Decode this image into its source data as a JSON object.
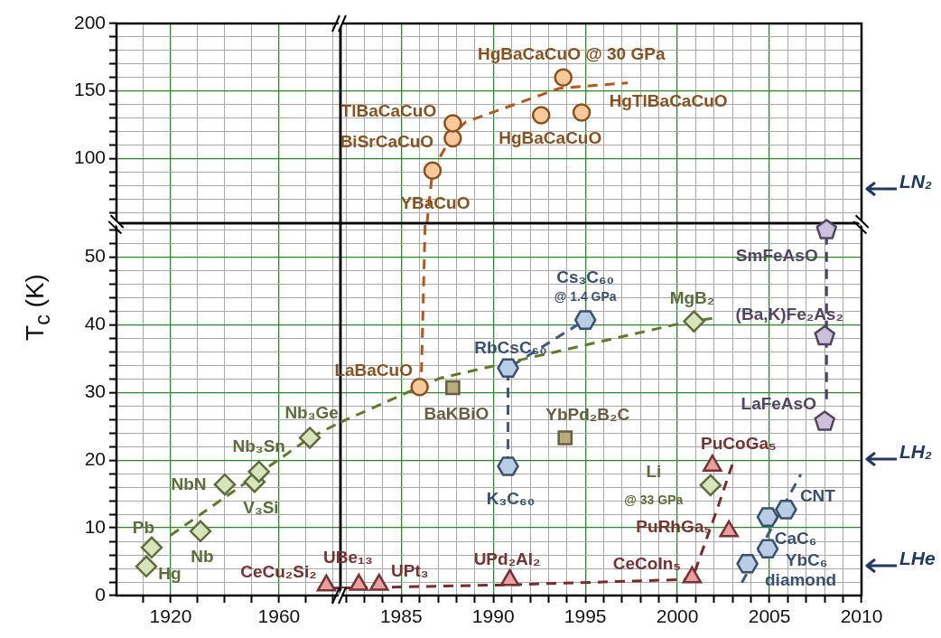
{
  "chart_data": [
    {
      "type": "scatter",
      "xlim": [
        1900,
        1982.7
      ],
      "ylim": [
        52,
        200
      ],
      "tick_labels": "y",
      "grid": true,
      "xticks": [
        {
          "value": 1910,
          "label": null
        },
        1920,
        {
          "value": 1930,
          "label": null
        },
        {
          "value": 1940,
          "label": null
        },
        {
          "value": 1950,
          "label": null
        },
        1960,
        {
          "value": 1970,
          "label": null
        },
        {
          "value": 1980,
          "label": null
        }
      ],
      "yticks": [
        {
          "value": 60,
          "label": null
        },
        {
          "value": 70,
          "label": null
        },
        {
          "value": 80,
          "label": null
        },
        {
          "value": 90,
          "label": null
        },
        100,
        {
          "value": 110,
          "label": null
        },
        {
          "value": 120,
          "label": null
        },
        {
          "value": 130,
          "label": null
        },
        {
          "value": 140,
          "label": null
        },
        150,
        {
          "value": 160,
          "label": null
        },
        {
          "value": 170,
          "label": null
        },
        {
          "value": 180,
          "label": null
        },
        {
          "value": 190,
          "label": null
        },
        200
      ]
    },
    {
      "type": "scatter",
      "xlim": [
        1981.7,
        2010
      ],
      "ylim": [
        52,
        200
      ],
      "tick_labels": false,
      "grid": true,
      "xticks": [
        {
          "value": 1982,
          "label": null
        },
        {
          "value": 1983,
          "label": null
        },
        {
          "value": 1984,
          "label": null
        },
        1985,
        {
          "value": 1986,
          "label": null
        },
        {
          "value": 1987,
          "label": null
        },
        {
          "value": 1988,
          "label": null
        },
        {
          "value": 1989,
          "label": null
        },
        1990,
        {
          "value": 1991,
          "label": null
        },
        {
          "value": 1992,
          "label": null
        },
        {
          "value": 1993,
          "label": null
        },
        {
          "value": 1994,
          "label": null
        },
        1995,
        {
          "value": 1996,
          "label": null
        },
        {
          "value": 1997,
          "label": null
        },
        {
          "value": 1998,
          "label": null
        },
        {
          "value": 1999,
          "label": null
        },
        2000,
        {
          "value": 2001,
          "label": null
        },
        {
          "value": 2002,
          "label": null
        },
        {
          "value": 2003,
          "label": null
        },
        {
          "value": 2004,
          "label": null
        },
        2005,
        {
          "value": 2006,
          "label": null
        },
        {
          "value": 2007,
          "label": null
        },
        {
          "value": 2008,
          "label": null
        },
        {
          "value": 2009,
          "label": null
        },
        2010
      ],
      "yticks": [
        {
          "value": 60,
          "label": null
        },
        {
          "value": 70,
          "label": null
        },
        {
          "value": 80,
          "label": null
        },
        {
          "value": 90,
          "label": null
        },
        100,
        {
          "value": 110,
          "label": null
        },
        {
          "value": 120,
          "label": null
        },
        {
          "value": 130,
          "label": null
        },
        {
          "value": 140,
          "label": null
        },
        150,
        {
          "value": 160,
          "label": null
        },
        {
          "value": 170,
          "label": null
        },
        {
          "value": 180,
          "label": null
        },
        {
          "value": 190,
          "label": null
        },
        200
      ],
      "series": [
        {
          "type": "line",
          "line_style": "dashed",
          "marker": "none",
          "color": "#b5571d",
          "x": [
            1986.4,
            1986.7,
            1987.8,
            1988.5,
            1993.6,
            1997.3
          ],
          "values": [
            52,
            91,
            118,
            127,
            152,
            156
          ]
        },
        {
          "type": "scatter",
          "marker": "circle",
          "color": "#f9c89b",
          "x": [
            1986.7,
            1987.8,
            1987.8,
            1992.6,
            1994.8,
            1993.8
          ],
          "values": [
            91,
            115,
            126,
            132,
            134,
            160
          ]
        }
      ],
      "annotations": [
        {
          "text": "YBaCuO",
          "x": 1986.7,
          "y": 91
        },
        {
          "text": "BiSrCaCuO",
          "x": 1987.8,
          "y": 115
        },
        {
          "text": "TlBaCaCuO",
          "x": 1987.8,
          "y": 126
        },
        {
          "text": "HgBaCaCuO",
          "x": 1992.6,
          "y": 132
        },
        {
          "text": "HgTlBaCaCuO",
          "x": 1994.8,
          "y": 134
        },
        {
          "text": "HgBaCaCuO @ 30 GPa",
          "x": 1993.8,
          "y": 160
        },
        "LN₂"
      ]
    },
    {
      "type": "scatter",
      "xlim": [
        1900,
        1982.7
      ],
      "ylim": [
        0,
        55
      ],
      "grid": true,
      "ylabel": "T$_{c}$ (K)",
      "xticks": [
        {
          "value": 1910,
          "label": null
        },
        1920,
        {
          "value": 1930,
          "label": null
        },
        {
          "value": 1940,
          "label": null
        },
        {
          "value": 1950,
          "label": null
        },
        1960,
        {
          "value": 1970,
          "label": null
        },
        {
          "value": 1980,
          "label": null
        }
      ],
      "yticks": [
        0,
        {
          "value": 2,
          "label": null
        },
        {
          "value": 4,
          "label": null
        },
        {
          "value": 6,
          "label": null
        },
        {
          "value": 8,
          "label": null
        },
        10,
        {
          "value": 12,
          "label": null
        },
        {
          "value": 14,
          "label": null
        },
        {
          "value": 16,
          "label": null
        },
        {
          "value": 18,
          "label": null
        },
        20,
        {
          "value": 22,
          "label": null
        },
        {
          "value": 24,
          "label": null
        },
        {
          "value": 26,
          "label": null
        },
        {
          "value": 28,
          "label": null
        },
        30,
        {
          "value": 32,
          "label": null
        },
        {
          "value": 34,
          "label": null
        },
        {
          "value": 36,
          "label": null
        },
        {
          "value": 38,
          "label": null
        },
        40,
        {
          "value": 42,
          "label": null
        },
        {
          "value": 44,
          "label": null
        },
        {
          "value": 46,
          "label": null
        },
        {
          "value": 48,
          "label": null
        },
        50,
        {
          "value": 52,
          "label": null
        },
        {
          "value": 54,
          "label": null
        }
      ],
      "series": [
        {
          "type": "line",
          "line_style": "dashed",
          "marker": "none",
          "color": "#5f7a2a",
          "x": [
            1920,
            1971.4,
            1982.7
          ],
          "values": [
            8.9,
            23.3,
            25.6
          ]
        },
        {
          "type": "line",
          "line_style": "dashed",
          "marker": "none",
          "color": "#7b2a2a",
          "x": [
            1979,
            1982.7
          ],
          "values": [
            1.1,
            1.1
          ]
        },
        {
          "type": "scatter",
          "marker": "diamond",
          "color": "#d7e4bc",
          "x": [
            1911,
            1913,
            1931,
            1940,
            1951,
            1952.6,
            1971.4
          ],
          "values": [
            4.3,
            7.1,
            9.5,
            16.4,
            16.8,
            18.3,
            23.3
          ]
        },
        {
          "type": "scatter",
          "marker": "triangle",
          "color": "#e6a0a0",
          "x": [
            1977.5
          ],
          "values": [
            1.5
          ]
        }
      ],
      "annotations": [
        {
          "text": "Hg",
          "x": 1911,
          "y": 4.3
        },
        {
          "text": "Pb",
          "x": 1913,
          "y": 7.1
        },
        {
          "text": "Nb",
          "x": 1931,
          "y": 9.5
        },
        {
          "text": "NbN",
          "x": 1940,
          "y": 16.4
        },
        {
          "text": "V₃Si",
          "x": 1951,
          "y": 16.8
        },
        {
          "text": "Nb₃Sn",
          "x": 1952.6,
          "y": 18.3
        },
        {
          "text": "Nb₃Ge",
          "x": 1971.4,
          "y": 23.3
        },
        {
          "text": "CeCu₂Si₂",
          "x": 1977.5,
          "y": 1.5
        }
      ]
    },
    {
      "type": "scatter",
      "xlim": [
        1981.7,
        2010
      ],
      "ylim": [
        0,
        55
      ],
      "tick_labels": "x",
      "grid": true,
      "xticks": [
        {
          "value": 1982,
          "label": null
        },
        {
          "value": 1983,
          "label": null
        },
        {
          "value": 1984,
          "label": null
        },
        1985,
        {
          "value": 1986,
          "label": null
        },
        {
          "value": 1987,
          "label": null
        },
        {
          "value": 1988,
          "label": null
        },
        {
          "value": 1989,
          "label": null
        },
        1990,
        {
          "value": 1991,
          "label": null
        },
        {
          "value": 1992,
          "label": null
        },
        {
          "value": 1993,
          "label": null
        },
        {
          "value": 1994,
          "label": null
        },
        1995,
        {
          "value": 1996,
          "label": null
        },
        {
          "value": 1997,
          "label": null
        },
        {
          "value": 1998,
          "label": null
        },
        {
          "value": 1999,
          "label": null
        },
        2000,
        {
          "value": 2001,
          "label": null
        },
        {
          "value": 2002,
          "label": null
        },
        {
          "value": 2003,
          "label": null
        },
        {
          "value": 2004,
          "label": null
        },
        2005,
        {
          "value": 2006,
          "label": null
        },
        {
          "value": 2007,
          "label": null
        },
        {
          "value": 2008,
          "label": null
        },
        {
          "value": 2009,
          "label": null
        },
        2010
      ],
      "yticks": [
        0,
        {
          "value": 2,
          "label": null
        },
        {
          "value": 4,
          "label": null
        },
        {
          "value": 6,
          "label": null
        },
        {
          "value": 8,
          "label": null
        },
        10,
        {
          "value": 12,
          "label": null
        },
        {
          "value": 14,
          "label": null
        },
        {
          "value": 16,
          "label": null
        },
        {
          "value": 18,
          "label": null
        },
        20,
        {
          "value": 22,
          "label": null
        },
        {
          "value": 24,
          "label": null
        },
        {
          "value": 26,
          "label": null
        },
        {
          "value": 28,
          "label": null
        },
        30,
        {
          "value": 32,
          "label": null
        },
        {
          "value": 34,
          "label": null
        },
        {
          "value": 36,
          "label": null
        },
        {
          "value": 38,
          "label": null
        },
        40,
        {
          "value": 42,
          "label": null
        },
        {
          "value": 44,
          "label": null
        },
        {
          "value": 46,
          "label": null
        },
        {
          "value": 48,
          "label": null
        },
        50,
        {
          "value": 52,
          "label": null
        },
        {
          "value": 54,
          "label": null
        }
      ],
      "series": [
        {
          "type": "line",
          "line_style": "dashed",
          "marker": "none",
          "color": "#b5571d",
          "x": [
            1986.1,
            1986.3
          ],
          "values": [
            33,
            55
          ]
        },
        {
          "type": "line",
          "line_style": "dashed",
          "marker": "none",
          "color": "#5f7a2a",
          "x": [
            1981.7,
            1985,
            1987.1,
            2000,
            2002
          ],
          "values": [
            25.6,
            29.6,
            32.1,
            40.1,
            41
          ]
        },
        {
          "type": "line",
          "line_style": "dashed",
          "marker": "none",
          "color": "#3b5a7e",
          "x": [
            1990.8,
            1990.8,
            1995
          ],
          "values": [
            19.1,
            33.6,
            40.7
          ]
        },
        {
          "type": "line",
          "line_style": "dashed",
          "marker": "none",
          "color": "#3b5a7e",
          "x": [
            2003.5,
            2006.7
          ],
          "values": [
            1.9,
            17.9
          ]
        },
        {
          "type": "line",
          "line_style": "dashed",
          "marker": "none",
          "color": "#4f3f6a",
          "x": [
            2008.1,
            2008.1
          ],
          "values": [
            29,
            53
          ]
        },
        {
          "type": "line",
          "line_style": "dashed",
          "marker": "none",
          "color": "#7b2a2a",
          "x": [
            1981.7,
            1991,
            2000.8,
            2002.1,
            2003
          ],
          "values": [
            1.1,
            1.6,
            2.4,
            12.3,
            19.5
          ]
        },
        {
          "type": "scatter",
          "marker": "circle",
          "color": "#f9c89b",
          "x": [
            1986
          ],
          "values": [
            30.8
          ]
        },
        {
          "type": "scatter",
          "marker": "diamond",
          "color": "#d7e4bc",
          "x": [
            2000.9,
            2001.8
          ],
          "values": [
            40.5,
            16.3
          ]
        },
        {
          "type": "scatter",
          "marker": "square",
          "color": "#b8ad7d",
          "x": [
            1987.8,
            1993.9
          ],
          "values": [
            30.7,
            23.3
          ]
        },
        {
          "type": "scatter",
          "color": "#b9cde5",
          "x": [
            1990.8,
            1990.8,
            1995,
            2005.9,
            2004.9,
            2004.9,
            2003.8
          ],
          "values": [
            33.6,
            19.1,
            40.7,
            12.7,
            11.6,
            6.9,
            4.7
          ]
        },
        {
          "type": "scatter",
          "color": "#ccc0da",
          "x": [
            2008.1,
            2008,
            2008
          ],
          "values": [
            54,
            38.3,
            25.7
          ]
        },
        {
          "type": "scatter",
          "marker": "triangle",
          "color": "#e6a0a0",
          "x": [
            1982.7,
            1983.8,
            1990.9,
            2000.8,
            2002.8,
            2001.9
          ],
          "values": [
            1.6,
            1.6,
            2.3,
            2.7,
            9.5,
            19.2
          ]
        }
      ],
      "annotations": [
        {
          "text": "LaBaCuO",
          "x": 1986,
          "y": 30.8
        },
        {
          "text": "BaKBiO",
          "x": 1987.8,
          "y": 30.7
        },
        {
          "text": "RbCsC₆₀",
          "x": 1990.8,
          "y": 33.6
        },
        {
          "text": "K₃C₆₀",
          "x": 1990.8,
          "y": 19.1
        },
        {
          "text": "Cs₃C₆₀",
          "x": 1995,
          "y": 40.7
        },
        {
          "text": "@ 1.4 GPa",
          "x": 1995,
          "y": 40.7
        },
        {
          "text": "MgB₂",
          "x": 2000.9,
          "y": 40.5
        },
        {
          "text": "(Ba,K)Fe₂As₂",
          "x": 2008,
          "y": 38.3
        },
        {
          "text": "SmFeAsO",
          "x": 2008.1,
          "y": 54
        },
        {
          "text": "LaFeAsO",
          "x": 2008,
          "y": 25.7
        },
        {
          "text": "YbPd₂B₂C",
          "x": 1993.9,
          "y": 23.3
        },
        {
          "text": "PuCoGa₅",
          "x": 2001.9,
          "y": 19.2
        },
        {
          "text": "Li",
          "x": 2001.8,
          "y": 16.3
        },
        {
          "text": "@ 33 GPa",
          "x": 2001.8,
          "y": 16.3
        },
        {
          "text": "PuRhGa₅",
          "x": 2002.8,
          "y": 9.5
        },
        {
          "text": "CeCoIn₅",
          "x": 2000.8,
          "y": 2.7
        },
        {
          "text": "UPd₂Al₂",
          "x": 1990.9,
          "y": 2.3
        },
        {
          "text": "UBe₁₃",
          "x": 1982.7,
          "y": 1.6
        },
        {
          "text": "UPt₃",
          "x": 1983.8,
          "y": 1.6
        },
        {
          "text": "CNT",
          "x": 2005.9,
          "y": 12.7
        },
        {
          "text": "CaC₆",
          "x": 2004.9,
          "y": 11.6
        },
        {
          "text": "YbC₆",
          "x": 2004.9,
          "y": 6.9
        },
        {
          "text": "diamond",
          "x": 2003.8,
          "y": 4.7
        },
        "LH₂",
        "LHe"
      ]
    }
  ]
}
